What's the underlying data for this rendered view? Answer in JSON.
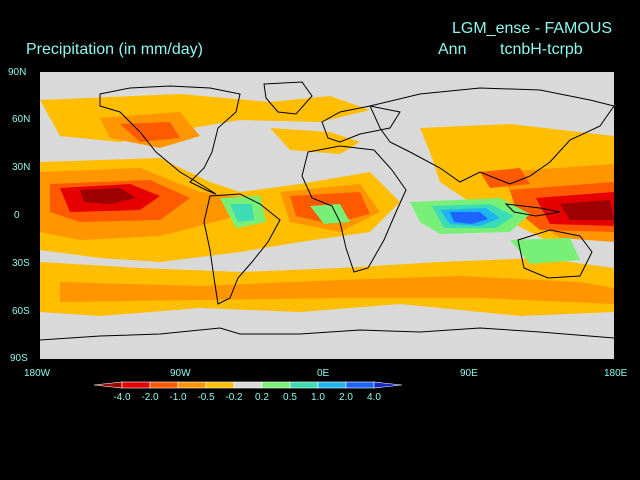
{
  "titles": {
    "run": "LGM_ense - FAMOUS",
    "variable": "Precipitation (in mm/day)",
    "season": "Ann",
    "experiment": "tcnbH-tcrpb"
  },
  "map": {
    "lat_ticks": [
      "90N",
      "60N",
      "30N",
      "0",
      "30S",
      "60S",
      "90S"
    ],
    "lon_ticks": [
      "180W",
      "90W",
      "0E",
      "90E",
      "180E"
    ],
    "background_color": "#d9d9d9",
    "coastline_color": "#000000"
  },
  "legend": {
    "labels": [
      "-4.0",
      "-2.0",
      "-1.0",
      "-0.5",
      "-0.2",
      "0.2",
      "0.5",
      "1.0",
      "2.0",
      "4.0"
    ],
    "colors": [
      "#9c0000",
      "#e60000",
      "#ff5a00",
      "#ff9600",
      "#ffbe00",
      "#d9d9d9",
      "#78f078",
      "#3cdcb4",
      "#1eb4f0",
      "#1e64ff",
      "#1428c8"
    ]
  }
}
